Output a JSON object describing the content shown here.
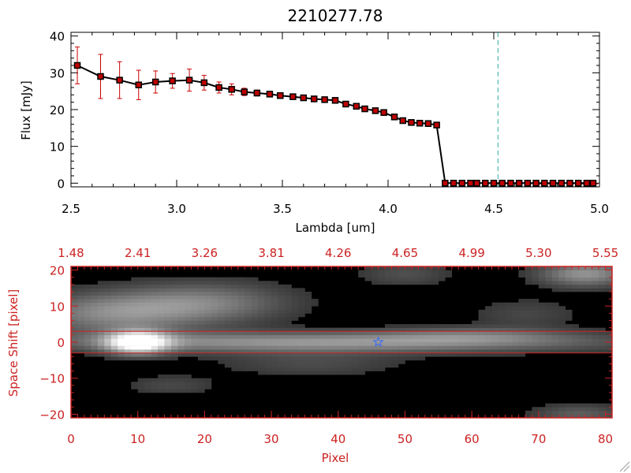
{
  "chart_data": [
    {
      "type": "line",
      "title": "2210277.78",
      "xlabel": "Lambda [um]",
      "ylabel": "Flux [mJy]",
      "xlim": [
        2.5,
        5.0
      ],
      "ylim": [
        -1,
        41
      ],
      "xticks": [
        "2.5",
        "3.0",
        "3.5",
        "4.0",
        "4.5",
        "5.0"
      ],
      "yticks": [
        "0",
        "10",
        "20",
        "30",
        "40"
      ],
      "reference_line_x": 4.52,
      "colors": {
        "line": "#000000",
        "marker_fill": "#c00000",
        "errorbar": "#cc0000",
        "reference": "#33aaaa"
      },
      "series": [
        {
          "x": [
            2.53,
            2.64,
            2.73,
            2.82,
            2.9,
            2.98,
            3.06,
            3.13,
            3.2,
            3.26,
            3.32,
            3.38,
            3.44,
            3.49,
            3.55,
            3.6,
            3.65,
            3.7,
            3.75,
            3.8,
            3.85,
            3.89,
            3.94,
            3.98,
            4.03,
            4.07,
            4.11,
            4.15,
            4.19,
            4.23,
            4.27,
            4.31,
            4.35,
            4.39,
            4.42,
            4.46,
            4.5,
            4.54,
            4.58,
            4.62,
            4.66,
            4.7,
            4.74,
            4.78,
            4.82,
            4.86,
            4.9,
            4.94,
            4.97
          ],
          "y": [
            32,
            29,
            28,
            26.7,
            27.5,
            27.8,
            28,
            27.3,
            26,
            25.5,
            24.8,
            24.5,
            24.2,
            23.8,
            23.5,
            23.2,
            22.9,
            22.7,
            22.5,
            21.5,
            20.9,
            20.2,
            19.7,
            19.2,
            18,
            17,
            16.5,
            16.3,
            16.2,
            15.8,
            0,
            0,
            0,
            0,
            0,
            0,
            0,
            0,
            0,
            0,
            0,
            0,
            0,
            0,
            0,
            0,
            0,
            0,
            0
          ],
          "yerr": [
            5,
            6,
            5,
            4,
            3,
            2,
            3,
            2,
            1.5,
            1.5,
            1,
            0.8,
            0.7,
            0.6,
            0.5,
            0.5,
            0.5,
            0.5,
            0.5,
            0.5,
            0.5,
            0.5,
            0.5,
            0.5,
            0.5,
            0.5,
            0.5,
            0.5,
            0.5,
            0.5,
            0,
            0,
            0,
            0,
            0,
            0,
            0,
            0,
            0,
            0,
            0,
            0,
            0,
            0,
            0,
            0,
            0,
            0,
            0
          ]
        }
      ]
    },
    {
      "type": "heatmap",
      "xlabel": "Pixel",
      "ylabel": "Space Shift [pixel]",
      "xlim": [
        0,
        81
      ],
      "ylim": [
        -21,
        21
      ],
      "xticks": [
        "0",
        "10",
        "20",
        "30",
        "40",
        "50",
        "60",
        "70",
        "80"
      ],
      "yticks": [
        "20",
        "10",
        "0",
        "−10",
        "−20"
      ],
      "top_ticks": [
        "1.48",
        "2.41",
        "3.26",
        "3.81",
        "4.26",
        "4.65",
        "4.99",
        "5.30",
        "5.55"
      ],
      "extraction_band": [
        -3,
        3
      ],
      "marker": {
        "symbol": "star",
        "x": 46,
        "y": 0
      },
      "colors": {
        "axes": "#cc2222",
        "band": "#cc2222",
        "marker": "#3366ff"
      },
      "sources": [
        {
          "x": 10,
          "y": 0,
          "sx": 3.2,
          "sy": 2.2,
          "amp": 1.0
        },
        {
          "x": 38,
          "y": 0,
          "sx": 30,
          "sy": 2.0,
          "amp": 0.52
        },
        {
          "x": 6,
          "y": 8,
          "sx": 9,
          "sy": 4,
          "amp": 0.42
        },
        {
          "x": 20,
          "y": 11,
          "sx": 9,
          "sy": 4,
          "amp": 0.38
        },
        {
          "x": 77,
          "y": 19,
          "sx": 5,
          "sy": 2.5,
          "amp": 0.5
        },
        {
          "x": 60,
          "y": 2,
          "sx": 10,
          "sy": 1.6,
          "amp": 0.22
        },
        {
          "x": 50,
          "y": 19,
          "sx": 5,
          "sy": 2.5,
          "amp": 0.18
        },
        {
          "x": 36,
          "y": -6,
          "sx": 10,
          "sy": 2.5,
          "amp": 0.16
        },
        {
          "x": 76,
          "y": -20,
          "sx": 5,
          "sy": 2,
          "amp": 0.25
        },
        {
          "x": 15,
          "y": -12,
          "sx": 5,
          "sy": 2,
          "amp": 0.15
        },
        {
          "x": 68,
          "y": 8,
          "sx": 6,
          "sy": 3,
          "amp": 0.14
        }
      ]
    }
  ]
}
